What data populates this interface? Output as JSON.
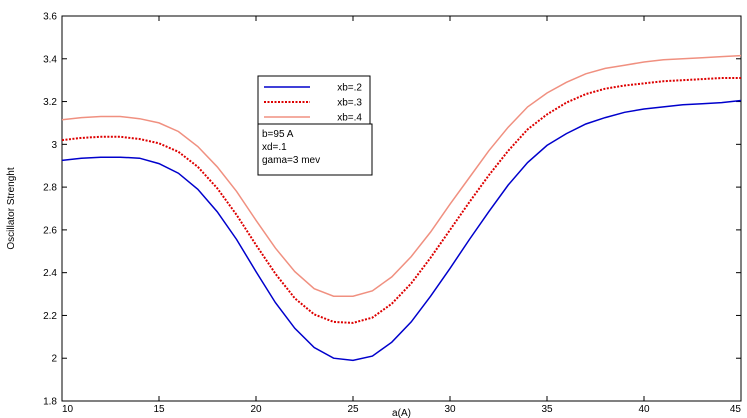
{
  "chart_data": {
    "type": "line",
    "xlabel": "a(A)",
    "ylabel": "Oscillator Strenght",
    "xlim": [
      10,
      45
    ],
    "ylim": [
      1.8,
      3.6
    ],
    "xticks": [
      10,
      15,
      20,
      25,
      30,
      35,
      40,
      45
    ],
    "yticks": [
      1.8,
      2.0,
      2.2,
      2.4,
      2.6,
      2.8,
      3.0,
      3.2,
      3.4,
      3.6
    ],
    "grid": false,
    "legend_position": "upper-left-center",
    "x": [
      10,
      11,
      12,
      13,
      14,
      15,
      16,
      17,
      18,
      19,
      20,
      21,
      22,
      23,
      24,
      25,
      26,
      27,
      28,
      29,
      30,
      31,
      32,
      33,
      34,
      35,
      36,
      37,
      38,
      39,
      40,
      41,
      42,
      43,
      44,
      45
    ],
    "series": [
      {
        "name": "xb=.2",
        "color": "#0000cc",
        "style": "solid",
        "values": [
          2.925,
          2.935,
          2.94,
          2.94,
          2.935,
          2.91,
          2.865,
          2.79,
          2.685,
          2.555,
          2.405,
          2.26,
          2.14,
          2.05,
          2.0,
          1.99,
          2.01,
          2.075,
          2.17,
          2.29,
          2.42,
          2.555,
          2.685,
          2.81,
          2.915,
          2.995,
          3.05,
          3.095,
          3.125,
          3.15,
          3.165,
          3.175,
          3.185,
          3.19,
          3.195,
          3.205
        ]
      },
      {
        "name": "xb=.3",
        "color": "#dd0000",
        "style": "dotted",
        "values": [
          3.02,
          3.03,
          3.035,
          3.035,
          3.025,
          3.005,
          2.965,
          2.895,
          2.795,
          2.67,
          2.53,
          2.395,
          2.28,
          2.205,
          2.17,
          2.165,
          2.19,
          2.255,
          2.35,
          2.47,
          2.6,
          2.73,
          2.855,
          2.97,
          3.07,
          3.14,
          3.195,
          3.235,
          3.26,
          3.275,
          3.285,
          3.295,
          3.3,
          3.305,
          3.31,
          3.31
        ]
      },
      {
        "name": "xb=.4",
        "color": "#f09080",
        "style": "solid",
        "values": [
          3.115,
          3.125,
          3.13,
          3.13,
          3.12,
          3.1,
          3.06,
          2.99,
          2.895,
          2.78,
          2.645,
          2.515,
          2.405,
          2.325,
          2.29,
          2.29,
          2.315,
          2.38,
          2.475,
          2.59,
          2.72,
          2.845,
          2.97,
          3.08,
          3.175,
          3.24,
          3.29,
          3.33,
          3.355,
          3.37,
          3.385,
          3.395,
          3.4,
          3.405,
          3.41,
          3.415
        ]
      }
    ],
    "annotation_lines": [
      "b=95 A",
      "xd=.1",
      "gama=3 mev"
    ]
  }
}
